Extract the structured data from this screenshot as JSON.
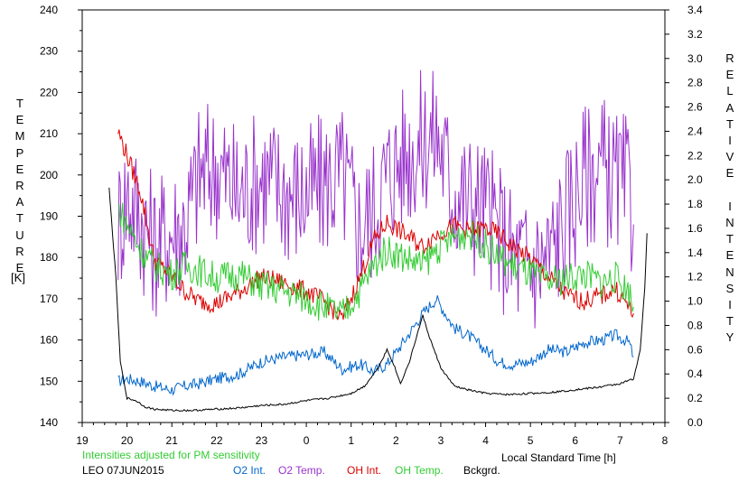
{
  "chart_data": {
    "type": "line",
    "title": "LEO 07JUN2015",
    "note": "Intensities adjusted for PM sensitivity",
    "xlabel": "Local Standard Time [h]",
    "ylabel_left": "TEMPERATURE",
    "ylabel_left_unit": "[K]",
    "ylabel_right": "RELATIVE INTENSITY",
    "x_ticks": [
      "19",
      "20",
      "21",
      "22",
      "23",
      "0",
      "1",
      "2",
      "3",
      "4",
      "5",
      "6",
      "7",
      "8"
    ],
    "xlim": [
      19,
      32
    ],
    "ylim_left": [
      140,
      240
    ],
    "ylim_right": [
      0.0,
      3.4
    ],
    "y_ticks_left": [
      140,
      150,
      160,
      170,
      180,
      190,
      200,
      210,
      220,
      230,
      240
    ],
    "y_ticks_right": [
      "0.0",
      "0.2",
      "0.4",
      "0.6",
      "0.8",
      "1.0",
      "1.2",
      "1.4",
      "1.6",
      "1.8",
      "2.0",
      "2.2",
      "2.4",
      "2.6",
      "2.8",
      "3.0",
      "3.2",
      "3.4"
    ],
    "grid": false,
    "legend_position": "bottom",
    "series": [
      {
        "name": "O2 Int.",
        "axis": "right",
        "color": "#0066cc",
        "x": [
          19.8,
          20.0,
          20.3,
          20.6,
          21.0,
          21.3,
          21.6,
          22.0,
          22.5,
          23.0,
          23.5,
          24.0,
          24.4,
          24.8,
          25.2,
          25.5,
          25.8,
          26.2,
          26.6,
          26.9,
          27.3,
          27.6,
          28.0,
          28.3,
          28.6,
          29.0,
          29.4,
          29.8,
          30.2,
          30.6,
          30.9,
          31.2,
          31.3
        ],
        "y": [
          0.34,
          0.36,
          0.34,
          0.3,
          0.27,
          0.3,
          0.32,
          0.36,
          0.4,
          0.5,
          0.54,
          0.56,
          0.58,
          0.44,
          0.48,
          0.42,
          0.48,
          0.68,
          0.9,
          1.02,
          0.78,
          0.72,
          0.6,
          0.5,
          0.48,
          0.5,
          0.6,
          0.58,
          0.66,
          0.68,
          0.72,
          0.66,
          0.54
        ]
      },
      {
        "name": "O2 Temp.",
        "axis": "left",
        "color": "#9933cc",
        "x": [
          19.8,
          20.0,
          20.3,
          20.6,
          21.0,
          21.3,
          21.6,
          22.0,
          22.5,
          23.0,
          23.5,
          24.0,
          24.4,
          24.8,
          25.2,
          25.5,
          25.8,
          26.2,
          26.6,
          26.9,
          27.3,
          27.6,
          28.0,
          28.3,
          28.6,
          29.0,
          29.4,
          29.8,
          30.2,
          30.6,
          30.9,
          31.2,
          31.3
        ],
        "y": [
          188,
          195,
          190,
          183,
          186,
          188,
          200,
          202,
          195,
          200,
          196,
          195,
          198,
          200,
          187,
          192,
          200,
          205,
          208,
          210,
          196,
          194,
          192,
          186,
          180,
          178,
          180,
          190,
          200,
          202,
          198,
          196,
          188
        ]
      },
      {
        "name": "OH Int.",
        "axis": "right",
        "color": "#dd0000",
        "x": [
          19.8,
          20.0,
          20.3,
          20.6,
          21.0,
          21.3,
          21.6,
          22.0,
          22.5,
          23.0,
          23.5,
          24.0,
          24.4,
          24.8,
          25.2,
          25.5,
          25.8,
          26.2,
          26.6,
          26.9,
          27.3,
          27.6,
          28.0,
          28.3,
          28.6,
          29.0,
          29.4,
          29.8,
          30.2,
          30.6,
          30.9,
          31.2,
          31.3
        ],
        "y": [
          2.4,
          2.2,
          1.9,
          1.35,
          1.2,
          1.08,
          1.0,
          0.98,
          1.08,
          1.2,
          1.15,
          1.08,
          1.0,
          0.85,
          1.2,
          1.5,
          1.65,
          1.55,
          1.45,
          1.55,
          1.62,
          1.58,
          1.6,
          1.55,
          1.45,
          1.35,
          1.2,
          1.05,
          1.0,
          1.05,
          1.1,
          0.95,
          0.9
        ]
      },
      {
        "name": "OH Temp.",
        "axis": "left",
        "color": "#33cc33",
        "x": [
          19.8,
          20.0,
          20.3,
          20.6,
          21.0,
          21.3,
          21.6,
          22.0,
          22.5,
          23.0,
          23.5,
          24.0,
          24.4,
          24.8,
          25.2,
          25.5,
          25.8,
          26.2,
          26.6,
          26.9,
          27.3,
          27.6,
          28.0,
          28.3,
          28.6,
          29.0,
          29.4,
          29.8,
          30.2,
          30.6,
          30.9,
          31.2,
          31.3
        ],
        "y": [
          192,
          188,
          182,
          178,
          176,
          178,
          177,
          175,
          176,
          173,
          172,
          170,
          168,
          166,
          172,
          178,
          182,
          180,
          178,
          182,
          185,
          186,
          183,
          180,
          178,
          176,
          174,
          175,
          176,
          174,
          175,
          172,
          168
        ]
      },
      {
        "name": "Bckgrd.",
        "axis": "right",
        "color": "#000000",
        "x": [
          19.6,
          19.75,
          19.85,
          20.0,
          20.2,
          20.4,
          20.6,
          21.0,
          21.5,
          22.0,
          22.5,
          23.0,
          23.5,
          24.0,
          24.5,
          25.0,
          25.3,
          25.6,
          25.8,
          25.95,
          26.1,
          26.3,
          26.5,
          26.6,
          26.75,
          27.0,
          27.3,
          27.6,
          28.0,
          28.5,
          29.0,
          29.5,
          30.0,
          30.5,
          31.0,
          31.3,
          31.45,
          31.55,
          31.6
        ],
        "y": [
          1.93,
          1.2,
          0.5,
          0.2,
          0.18,
          0.13,
          0.11,
          0.1,
          0.1,
          0.11,
          0.12,
          0.14,
          0.15,
          0.18,
          0.2,
          0.24,
          0.3,
          0.45,
          0.6,
          0.48,
          0.32,
          0.5,
          0.76,
          0.88,
          0.7,
          0.45,
          0.3,
          0.27,
          0.24,
          0.23,
          0.24,
          0.25,
          0.27,
          0.29,
          0.32,
          0.36,
          0.6,
          1.1,
          1.56
        ]
      }
    ],
    "legend": [
      "O2 Int.",
      "O2 Temp.",
      "OH Int.",
      "OH Temp.",
      "Bckgrd."
    ],
    "colors": {
      "o2_int": "#0066cc",
      "o2_temp": "#9933cc",
      "oh_int": "#dd0000",
      "oh_temp": "#33cc33",
      "bckgrd": "#000000",
      "note": "#33cc33"
    }
  }
}
